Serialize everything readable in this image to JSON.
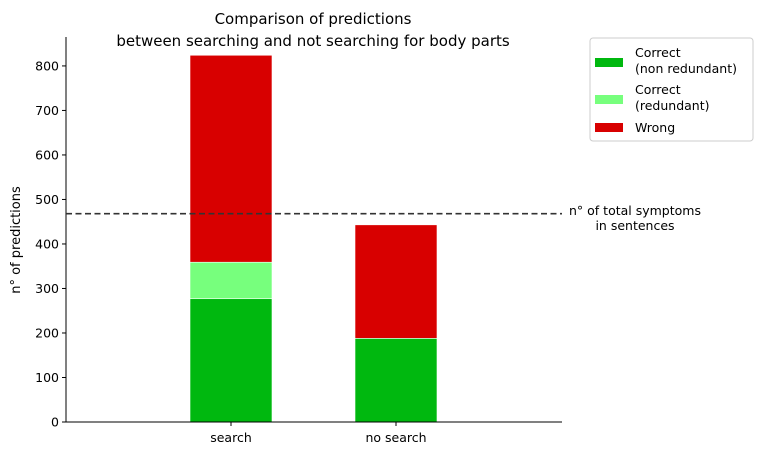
{
  "chart_data": {
    "type": "bar",
    "stacked": true,
    "title": [
      "Comparison of predictions",
      "between searching and not searching for body parts"
    ],
    "xlabel": "",
    "ylabel": "n° of predictions",
    "categories": [
      "search",
      "no search"
    ],
    "ylim": [
      0,
      865
    ],
    "yticks": [
      0,
      100,
      200,
      300,
      400,
      500,
      600,
      700,
      800
    ],
    "series": [
      {
        "name": "Correct\n(non redundant)",
        "color": "#00b80f",
        "values": [
          277,
          188
        ]
      },
      {
        "name": "Correct\n(redundant)",
        "color": "#77ff7d",
        "values": [
          82,
          0
        ]
      },
      {
        "name": "Wrong",
        "color": "#d80000",
        "values": [
          465,
          255
        ]
      }
    ],
    "reference_line": {
      "value": 468,
      "style": "dashed",
      "color": "#333333",
      "label": [
        "n° of total symptoms",
        "in sentences"
      ]
    },
    "legend_placement": "outside top-right",
    "grid": false
  }
}
